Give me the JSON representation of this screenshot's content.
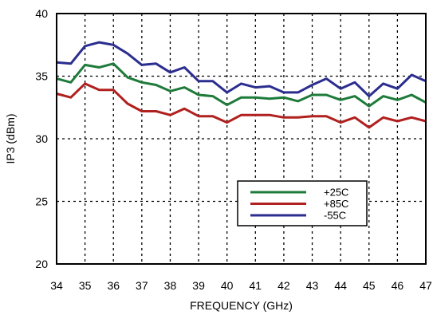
{
  "chart_data": {
    "type": "line",
    "title": "",
    "xlabel": "FREQUENCY (GHz)",
    "ylabel": "IP3 (dBm)",
    "xlim": [
      34,
      47
    ],
    "ylim": [
      20,
      40
    ],
    "xticks": [
      "34",
      "35",
      "36",
      "37",
      "38",
      "39",
      "40",
      "41",
      "42",
      "43",
      "44",
      "45",
      "46",
      "47"
    ],
    "yticks": [
      "20",
      "25",
      "30",
      "35",
      "40"
    ],
    "grid": "dotted",
    "legend_position": "lower-right",
    "x": [
      34,
      34.5,
      35,
      35.5,
      36,
      36.5,
      37,
      37.5,
      38,
      38.5,
      39,
      39.5,
      40,
      40.5,
      41,
      41.5,
      42,
      42.5,
      43,
      43.5,
      44,
      44.5,
      45,
      45.5,
      46,
      46.5,
      47
    ],
    "series": [
      {
        "name": "+25C",
        "color": "#1e7b3a",
        "values": [
          34.8,
          34.5,
          35.9,
          35.7,
          36.0,
          34.9,
          34.5,
          34.3,
          33.8,
          34.1,
          33.5,
          33.4,
          32.7,
          33.3,
          33.3,
          33.2,
          33.3,
          33.0,
          33.5,
          33.5,
          33.1,
          33.4,
          32.6,
          33.4,
          33.1,
          33.5,
          32.9
        ]
      },
      {
        "name": "+85C",
        "color": "#b0201e",
        "values": [
          33.6,
          33.3,
          34.4,
          33.9,
          33.9,
          32.8,
          32.2,
          32.2,
          31.9,
          32.4,
          31.8,
          31.8,
          31.3,
          31.9,
          31.9,
          31.9,
          31.7,
          31.7,
          31.8,
          31.8,
          31.3,
          31.7,
          30.9,
          31.7,
          31.4,
          31.7,
          31.4
        ]
      },
      {
        "name": "-55C",
        "color": "#2b2e8f",
        "values": [
          36.1,
          36.0,
          37.4,
          37.7,
          37.5,
          36.8,
          35.9,
          36.0,
          35.3,
          35.7,
          34.6,
          34.6,
          33.7,
          34.4,
          34.1,
          34.2,
          33.7,
          33.7,
          34.3,
          34.8,
          34.0,
          34.5,
          33.4,
          34.4,
          34.0,
          35.1,
          34.6
        ]
      }
    ]
  }
}
